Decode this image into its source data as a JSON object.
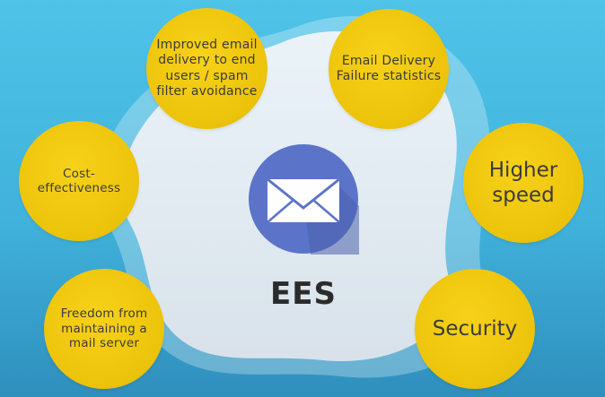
{
  "diagram": {
    "center": {
      "label": "EES",
      "icon": "envelope-icon",
      "icon_color": "#5b74c9"
    },
    "benefits": [
      {
        "id": "improved-delivery",
        "text": "Improved email delivery to end users / spam filter avoidance"
      },
      {
        "id": "failure-stats",
        "text": "Email Delivery Failure statistics"
      },
      {
        "id": "cost",
        "text": "Cost-effectiveness"
      },
      {
        "id": "speed",
        "text": "Higher speed"
      },
      {
        "id": "freedom",
        "text": "Freedom from maintaining a mail server"
      },
      {
        "id": "security",
        "text": "Security"
      }
    ],
    "colors": {
      "background": "#4fc3e8",
      "bubble": "#f2c811",
      "blob": "#eef1f5"
    }
  }
}
